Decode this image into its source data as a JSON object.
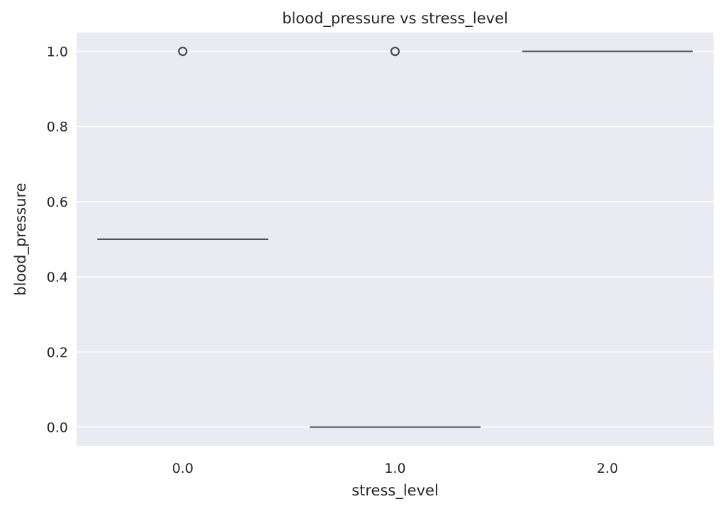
{
  "chart_data": {
    "type": "box",
    "title": "blood_pressure vs stress_level",
    "xlabel": "stress_level",
    "ylabel": "blood_pressure",
    "categories": [
      "0.0",
      "1.0",
      "2.0"
    ],
    "yticks": [
      "0.0",
      "0.2",
      "0.4",
      "0.6",
      "0.8",
      "1.0"
    ],
    "ylim": [
      -0.05,
      1.05
    ],
    "grid": true,
    "boxes": [
      {
        "category": "0.0",
        "q1": 0.5,
        "median": 0.5,
        "q3": 0.5,
        "whisker_low": 0.5,
        "whisker_high": 0.5,
        "outliers": [
          1.0
        ]
      },
      {
        "category": "1.0",
        "q1": 0.0,
        "median": 0.0,
        "q3": 0.0,
        "whisker_low": 0.0,
        "whisker_high": 0.0,
        "outliers": [
          1.0
        ]
      },
      {
        "category": "2.0",
        "q1": 1.0,
        "median": 1.0,
        "q3": 1.0,
        "whisker_low": 1.0,
        "whisker_high": 1.0,
        "outliers": []
      }
    ],
    "colors": {
      "background": "#eaeaf2",
      "grid": "#ffffff",
      "box_line": "#4a4a4a"
    }
  }
}
